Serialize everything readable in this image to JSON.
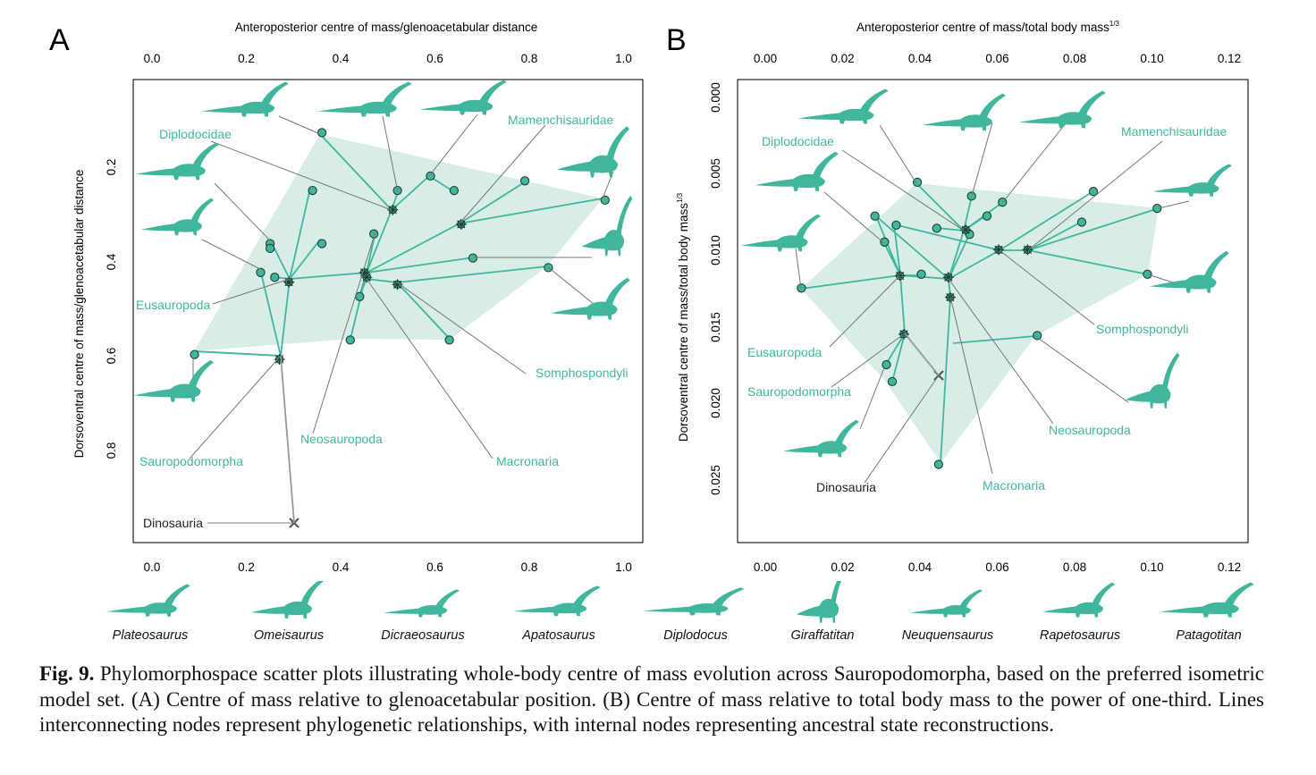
{
  "colors": {
    "teal": "#40b79c",
    "hull": "#d7ede6",
    "grey": "#777777",
    "black": "#222222"
  },
  "panels": [
    {
      "letter": "A",
      "top_axis_title": "Anteroposterior centre of mass/glenoacetabular distance",
      "y_axis_title": "Dorsoventral centre of mass/glenoacetabular distance",
      "x_ticks": [
        "0.0",
        "0.2",
        "0.4",
        "0.6",
        "0.8",
        "1.0"
      ],
      "y_ticks": [
        "0.2",
        "0.4",
        "0.6",
        "0.8"
      ],
      "clade_labels": [
        "Diplodocidae",
        "Mamenchisauridae",
        "Eusauropoda",
        "Sauropodomorpha",
        "Neosauropoda",
        "Somphospondyli",
        "Macronaria",
        "Dinosauria"
      ]
    },
    {
      "letter": "B",
      "top_axis_title": "Anteroposterior centre of mass/total body mass",
      "top_axis_superscript": "1/3",
      "y_axis_title": "Dorsoventral centre of mass/total body mass",
      "y_axis_superscript": "1/3",
      "x_ticks": [
        "0.00",
        "0.02",
        "0.04",
        "0.06",
        "0.08",
        "0.10",
        "0.12"
      ],
      "y_ticks": [
        "0.000",
        "0.005",
        "0.010",
        "0.015",
        "0.020",
        "0.025"
      ],
      "clade_labels": [
        "Diplodocidae",
        "Mamenchisauridae",
        "Eusauropoda",
        "Sauropodomorpha",
        "Somphospondyli",
        "Neosauropoda",
        "Macronaria",
        "Dinosauria"
      ]
    }
  ],
  "chart_data": [
    {
      "type": "scatter",
      "panel": "A",
      "xlabel": "Anteroposterior centre of mass/glenoacetabular distance",
      "ylabel": "Dorsoventral centre of mass/glenoacetabular distance",
      "xlim": [
        -0.04,
        1.04
      ],
      "ylim": [
        0.98,
        0.02
      ],
      "y_inverted": true,
      "tips": [
        {
          "x": 0.36,
          "y": 0.13
        },
        {
          "x": 0.59,
          "y": 0.22
        },
        {
          "x": 0.64,
          "y": 0.25
        },
        {
          "x": 0.79,
          "y": 0.23
        },
        {
          "x": 0.96,
          "y": 0.27
        },
        {
          "x": 0.68,
          "y": 0.39
        },
        {
          "x": 0.84,
          "y": 0.41
        },
        {
          "x": 0.63,
          "y": 0.56
        },
        {
          "x": 0.42,
          "y": 0.56
        },
        {
          "x": 0.44,
          "y": 0.47
        },
        {
          "x": 0.47,
          "y": 0.34
        },
        {
          "x": 0.52,
          "y": 0.25
        },
        {
          "x": 0.34,
          "y": 0.25
        },
        {
          "x": 0.36,
          "y": 0.36
        },
        {
          "x": 0.25,
          "y": 0.36
        },
        {
          "x": 0.25,
          "y": 0.37
        },
        {
          "x": 0.23,
          "y": 0.42
        },
        {
          "x": 0.26,
          "y": 0.43
        },
        {
          "x": 0.09,
          "y": 0.59
        }
      ],
      "internal_nodes": [
        {
          "x": 0.27,
          "y": 0.6
        },
        {
          "x": 0.29,
          "y": 0.44
        },
        {
          "x": 0.45,
          "y": 0.42
        },
        {
          "x": 0.455,
          "y": 0.43
        },
        {
          "x": 0.51,
          "y": 0.29
        },
        {
          "x": 0.655,
          "y": 0.32
        },
        {
          "x": 0.52,
          "y": 0.445
        }
      ],
      "root": {
        "x": 0.3,
        "y": 0.95
      }
    },
    {
      "type": "scatter",
      "panel": "B",
      "xlabel": "Anteroposterior centre of mass/total body mass^(1/3)",
      "ylabel": "Dorsoventral centre of mass/total body mass^(1/3)",
      "xlim": [
        -0.007,
        0.125
      ],
      "ylim": [
        0.0291,
        -0.0011
      ],
      "y_inverted": true,
      "tips": [
        {
          "x": 0.0395,
          "y": 0.0056
        },
        {
          "x": 0.0535,
          "y": 0.0065
        },
        {
          "x": 0.0575,
          "y": 0.0078
        },
        {
          "x": 0.0615,
          "y": 0.0069
        },
        {
          "x": 0.085,
          "y": 0.0062
        },
        {
          "x": 0.1015,
          "y": 0.0073
        },
        {
          "x": 0.082,
          "y": 0.0082
        },
        {
          "x": 0.099,
          "y": 0.0116
        },
        {
          "x": 0.0705,
          "y": 0.0156
        },
        {
          "x": 0.045,
          "y": 0.024
        },
        {
          "x": 0.053,
          "y": 0.009
        },
        {
          "x": 0.0445,
          "y": 0.0086
        },
        {
          "x": 0.0285,
          "y": 0.0078
        },
        {
          "x": 0.034,
          "y": 0.0084
        },
        {
          "x": 0.031,
          "y": 0.0095
        },
        {
          "x": 0.0405,
          "y": 0.0116
        },
        {
          "x": 0.0095,
          "y": 0.0125
        },
        {
          "x": 0.0315,
          "y": 0.0175
        },
        {
          "x": 0.033,
          "y": 0.0186
        }
      ],
      "internal_nodes": [
        {
          "x": 0.036,
          "y": 0.0155
        },
        {
          "x": 0.035,
          "y": 0.0117
        },
        {
          "x": 0.0475,
          "y": 0.0118
        },
        {
          "x": 0.048,
          "y": 0.0131
        },
        {
          "x": 0.052,
          "y": 0.0087
        },
        {
          "x": 0.0605,
          "y": 0.01
        },
        {
          "x": 0.068,
          "y": 0.01
        }
      ],
      "root": {
        "x": 0.045,
        "y": 0.0182
      }
    }
  ],
  "taxa_row": [
    "Plateosaurus",
    "Omeisaurus",
    "Dicraeosaurus",
    "Apatosaurus",
    "Diplodocus",
    "Giraffatitan",
    "Neuquensaurus",
    "Rapetosaurus",
    "Patagotitan"
  ],
  "caption": {
    "label": "Fig. 9.",
    "text": " Phylomorphospace scatter plots illustrating whole-body centre of mass evolution across Sauropodomorpha, based on the preferred isometric model set. (A) Centre of mass relative to glenoacetabular position. (B) Centre of mass relative to total body mass to the power of one-third. Lines interconnecting nodes represent phylogenetic relationships, with internal nodes representing ancestral state reconstructions."
  }
}
